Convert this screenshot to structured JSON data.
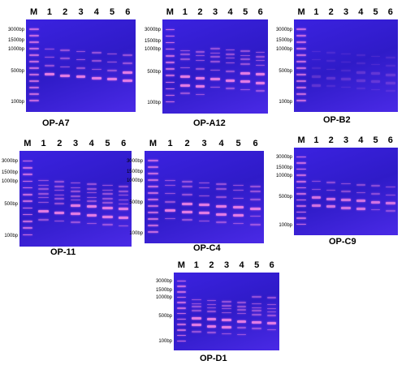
{
  "panels": [
    {
      "title": "OP-A7",
      "lanes": [
        "M",
        "1",
        "2",
        "3",
        "4",
        "5",
        "6"
      ],
      "markers": [
        "3000bp",
        "1500bp",
        "1000bp",
        "500bp",
        "100bp"
      ]
    },
    {
      "title": "OP-A12",
      "lanes": [
        "M",
        "1",
        "2",
        "3",
        "4",
        "5",
        "6"
      ],
      "markers": [
        "3000bp",
        "1500bp",
        "1000bp",
        "500bp",
        "100bp"
      ]
    },
    {
      "title": "OP-B2",
      "lanes": [
        "M",
        "1",
        "2",
        "3",
        "4",
        "5",
        "6"
      ],
      "markers": [
        "3000bp",
        "1500bp",
        "1000bp",
        "500bp",
        "100bp"
      ]
    },
    {
      "title": "OP-11",
      "lanes": [
        "M",
        "1",
        "2",
        "3",
        "4",
        "5",
        "6"
      ],
      "markers": [
        "3000bp",
        "1500bp",
        "1000bp",
        "500bp",
        "100bp"
      ]
    },
    {
      "title": "OP-C4",
      "lanes": [
        "M",
        "1",
        "2",
        "3",
        "4",
        "5",
        "6"
      ],
      "markers": [
        "3000bp",
        "1500bp",
        "1000bp",
        "500bp",
        "100bp"
      ]
    },
    {
      "title": "OP-C9",
      "lanes": [
        "M",
        "1",
        "2",
        "3",
        "4",
        "5",
        "6"
      ],
      "markers": [
        "3000bp",
        "1500bp",
        "1000bp",
        "500bp",
        "100bp"
      ]
    },
    {
      "title": "OP-D1",
      "lanes": [
        "M",
        "1",
        "2",
        "3",
        "4",
        "5",
        "6"
      ],
      "markers": [
        "3000bp",
        "1500bp",
        "1000bp",
        "500bp",
        "100bp"
      ]
    }
  ]
}
